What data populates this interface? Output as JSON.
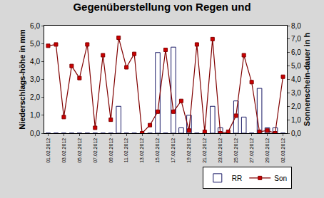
{
  "chart_data": {
    "type": "bar",
    "title": "Gegenüberstellung von Regen und",
    "y_label": "Niederschlags-höhe in mm",
    "y2_label": "Sonnenschein-dauer in h",
    "categories": [
      "01.02.2012",
      null,
      "03.02.2012",
      null,
      "05.02.2012",
      null,
      "07.02.2012",
      null,
      "09.02.2012",
      null,
      "11.02.2012",
      null,
      "13.02.2012",
      null,
      "15.02.2012",
      null,
      "17.02.2012",
      null,
      "19.02.2012",
      null,
      "21.02.2012",
      null,
      "23.02.2012",
      null,
      "25.02.2012",
      null,
      "27.02.2012",
      null,
      "29.02.2012",
      null,
      "02.03.2012"
    ],
    "series": [
      {
        "name": "RR",
        "type": "bar",
        "color": "#9090dc",
        "axis": "y",
        "values": [
          0,
          0,
          0,
          0,
          0,
          0,
          0,
          0,
          0,
          1.5,
          0,
          0,
          0,
          0,
          4.5,
          0,
          4.8,
          0.3,
          1.0,
          0,
          0,
          1.5,
          0.3,
          0,
          1.8,
          0.9,
          0,
          2.5,
          0.3,
          0.3,
          0
        ]
      },
      {
        "name": "Son",
        "type": "line",
        "color": "#800000",
        "marker": "square",
        "axis": "y2",
        "values": [
          6.5,
          6.6,
          1.2,
          5.0,
          4.1,
          6.6,
          0.4,
          5.8,
          1.0,
          7.1,
          4.9,
          5.9,
          0.0,
          0.6,
          1.6,
          6.2,
          1.6,
          2.4,
          0.2,
          6.6,
          0.1,
          7.0,
          0.0,
          0.1,
          1.3,
          5.8,
          3.8,
          0.1,
          0.2,
          0.0,
          4.2
        ]
      }
    ],
    "ylim": [
      0,
      6
    ],
    "yticks": [
      {
        "value": 0,
        "label": "0,0"
      },
      {
        "value": 1,
        "label": "1,0"
      },
      {
        "value": 2,
        "label": "2,0"
      },
      {
        "value": 3,
        "label": "3,0"
      },
      {
        "value": 4,
        "label": "4,0"
      },
      {
        "value": 5,
        "label": "5,0"
      },
      {
        "value": 6,
        "label": "6,0"
      }
    ],
    "y2lim": [
      0,
      8
    ],
    "y2ticks": [
      {
        "value": 0,
        "label": "0,0"
      },
      {
        "value": 1,
        "label": "1,0"
      },
      {
        "value": 2,
        "label": "2,0"
      },
      {
        "value": 3,
        "label": "3,0"
      },
      {
        "value": 4,
        "label": "4,0"
      },
      {
        "value": 5,
        "label": "5,0"
      },
      {
        "value": 6,
        "label": "6,0"
      },
      {
        "value": 7,
        "label": "7,0"
      },
      {
        "value": 8,
        "label": "8,0"
      }
    ],
    "grid": false,
    "legend": "lower right"
  }
}
